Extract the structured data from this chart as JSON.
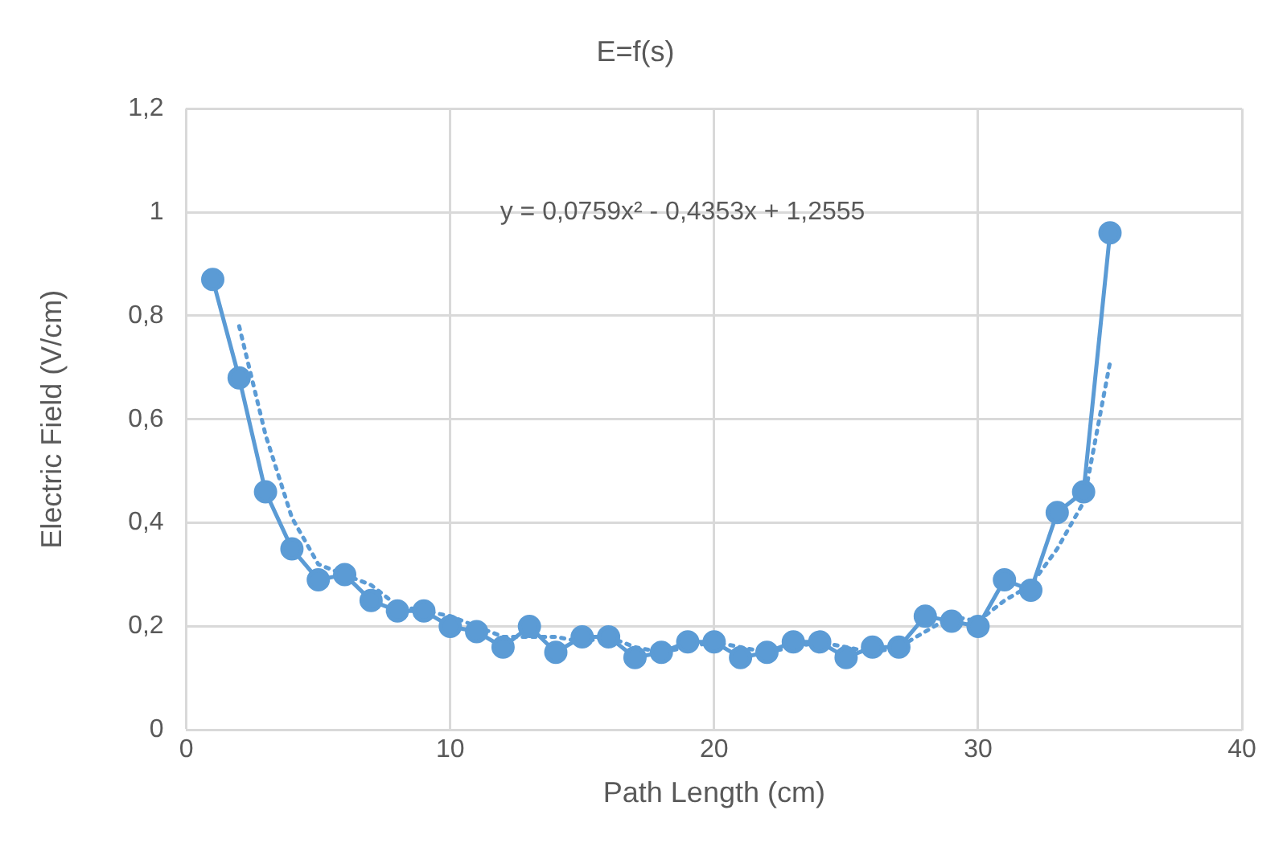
{
  "chart_data": {
    "type": "line",
    "title": "E=f(s)",
    "xlabel": "Path Length (cm)",
    "ylabel": "Electric Field (V/cm)",
    "annotations": [
      "y = 0,0759x² - 0,4353x + 1,2555"
    ],
    "series": [
      {
        "type": "line",
        "color": "#5b9bd5",
        "marker": "circle",
        "line_style": "solid",
        "x": [
          1,
          2,
          3,
          4,
          5,
          6,
          7,
          8,
          9,
          10,
          11,
          12,
          13,
          14,
          15,
          16,
          17,
          18,
          19,
          20,
          21,
          22,
          23,
          24,
          25,
          26,
          27,
          28,
          29,
          30,
          31,
          32,
          33,
          34,
          35
        ],
        "values": [
          0.87,
          0.68,
          0.46,
          0.35,
          0.29,
          0.3,
          0.25,
          0.23,
          0.23,
          0.2,
          0.19,
          0.16,
          0.2,
          0.15,
          0.18,
          0.18,
          0.14,
          0.15,
          0.17,
          0.17,
          0.14,
          0.15,
          0.17,
          0.17,
          0.14,
          0.16,
          0.16,
          0.22,
          0.21,
          0.2,
          0.29,
          0.27,
          0.42,
          0.46,
          0.96
        ]
      },
      {
        "type": "line",
        "color": "#5b9bd5",
        "marker": "none",
        "line_style": "dotted",
        "x": [
          2,
          3,
          4,
          5,
          6,
          7,
          8,
          9,
          10,
          11,
          12,
          13,
          14,
          15,
          16,
          17,
          18,
          19,
          20,
          21,
          22,
          23,
          24,
          25,
          26,
          27,
          28,
          29,
          30,
          31,
          32,
          33,
          34,
          35
        ],
        "values": [
          0.78,
          0.57,
          0.41,
          0.32,
          0.3,
          0.28,
          0.24,
          0.23,
          0.22,
          0.2,
          0.18,
          0.18,
          0.18,
          0.17,
          0.18,
          0.16,
          0.15,
          0.16,
          0.17,
          0.16,
          0.15,
          0.16,
          0.17,
          0.16,
          0.15,
          0.16,
          0.19,
          0.22,
          0.21,
          0.25,
          0.28,
          0.35,
          0.44,
          0.71
        ]
      }
    ],
    "xlim": [
      0,
      40
    ],
    "xticks": [
      0,
      10,
      20,
      30,
      40
    ],
    "ylim": [
      0,
      1.2
    ],
    "yticks": [
      0,
      {
        "value": 0.2,
        "label": "0,2"
      },
      {
        "value": 0.4,
        "label": "0,4"
      },
      {
        "value": 0.6,
        "label": "0,6"
      },
      {
        "value": 0.8,
        "label": "0,8"
      },
      1,
      {
        "value": 1.2,
        "label": "1,2"
      }
    ],
    "grid": true,
    "legend": false
  }
}
